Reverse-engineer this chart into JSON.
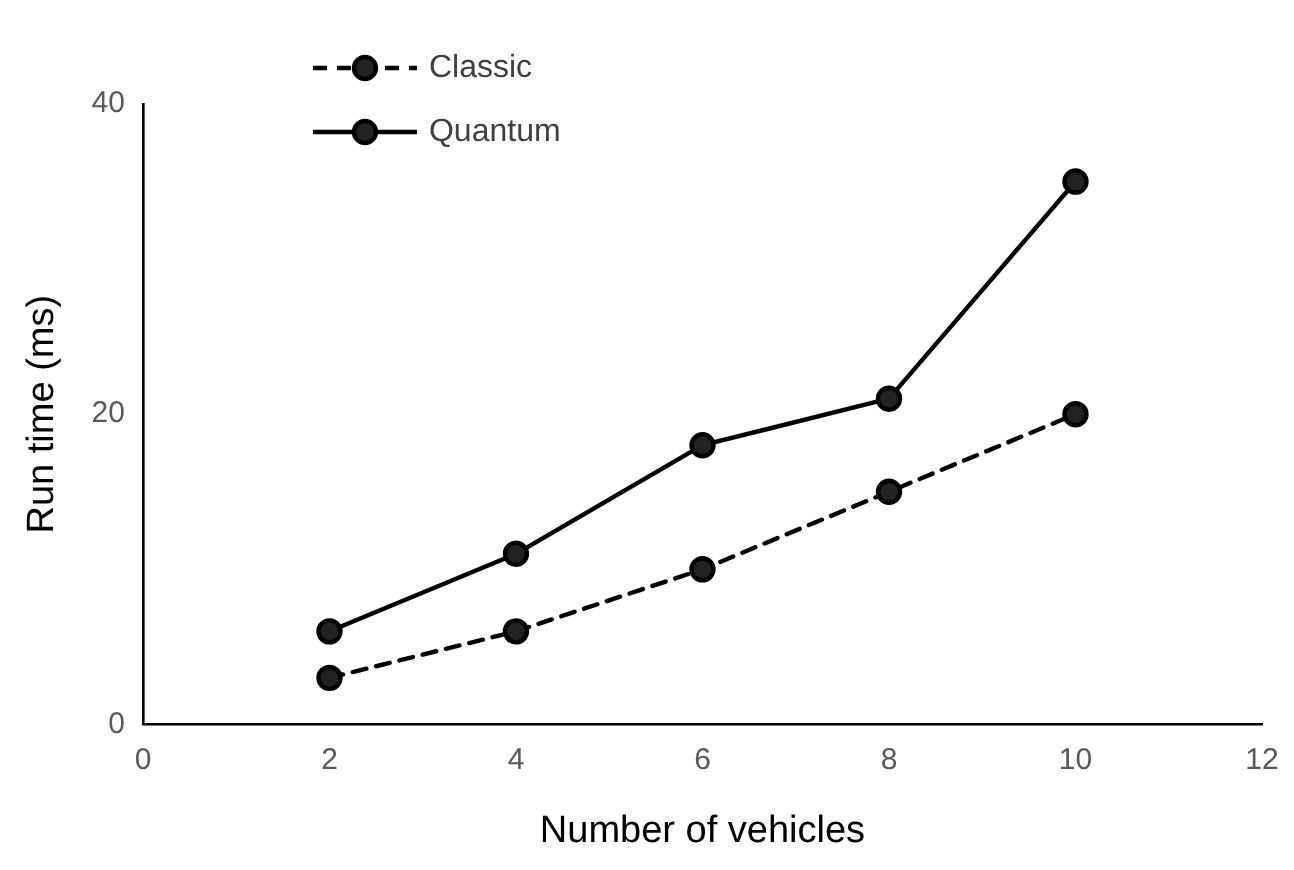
{
  "chart_data": {
    "type": "line",
    "xlabel": "Number of vehicles",
    "ylabel": "Run time (ms)",
    "x": [
      2,
      4,
      6,
      8,
      10
    ],
    "series": [
      {
        "name": "Classic",
        "color": "#000000",
        "values": [
          3,
          6,
          10,
          15,
          20
        ],
        "line_style": "dashed"
      },
      {
        "name": "Quantum",
        "color": "#000000",
        "values": [
          6,
          11,
          18,
          21,
          35
        ],
        "line_style": "solid"
      }
    ],
    "xlim": [
      0,
      12
    ],
    "xticks": [
      0,
      2,
      4,
      6,
      8,
      10,
      12
    ],
    "ylim": [
      0,
      40
    ],
    "yticks": [
      0,
      20,
      40
    ],
    "grid": false,
    "legend": "top left",
    "marker": "circle"
  }
}
